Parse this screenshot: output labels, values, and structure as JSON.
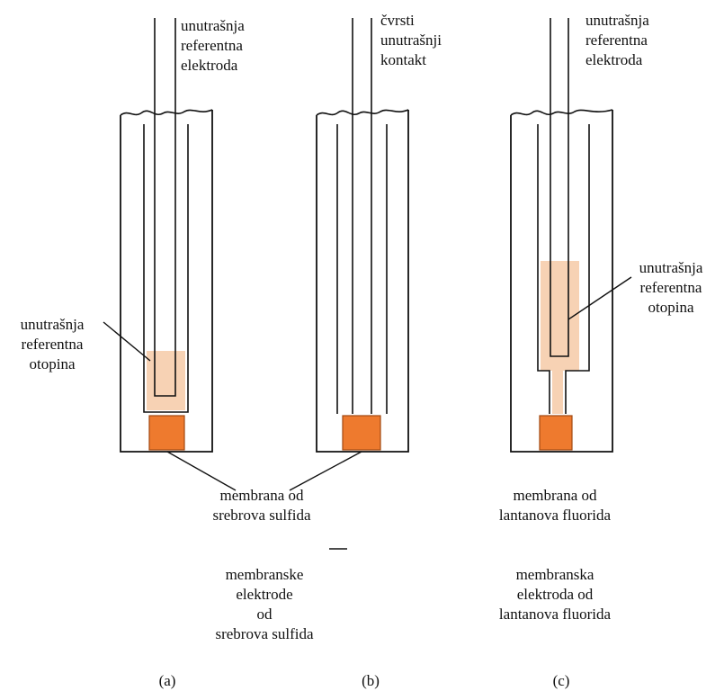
{
  "labels": {
    "a_top": [
      "unutrašnja",
      "referentna",
      "elektroda"
    ],
    "b_top": [
      "čvrsti",
      "unutrašnji",
      "kontakt"
    ],
    "c_top": [
      "unutrašnja",
      "referentna",
      "elektroda"
    ],
    "a_solution": [
      "unutrašnja",
      "referentna",
      "otopina"
    ],
    "c_solution": [
      "unutrašnja",
      "referentna",
      "otopina"
    ],
    "membrane_ab": [
      "membrana od",
      "srebrova sulfida"
    ],
    "membrane_c": [
      "membrana od",
      "lantanova fluorida"
    ],
    "group_ab": [
      "membranske",
      "elektrode",
      "od",
      "srebrova sulfida"
    ],
    "group_c": [
      "membranska",
      "elektroda od",
      "lantanova fluorida"
    ]
  },
  "captions": {
    "a": "(a)",
    "b": "(b)",
    "c": "(c)"
  },
  "colors": {
    "membrane": "#ee7a2e",
    "membrane_edge": "#a14810",
    "solution": "#f7d2b4",
    "line": "#111111"
  }
}
